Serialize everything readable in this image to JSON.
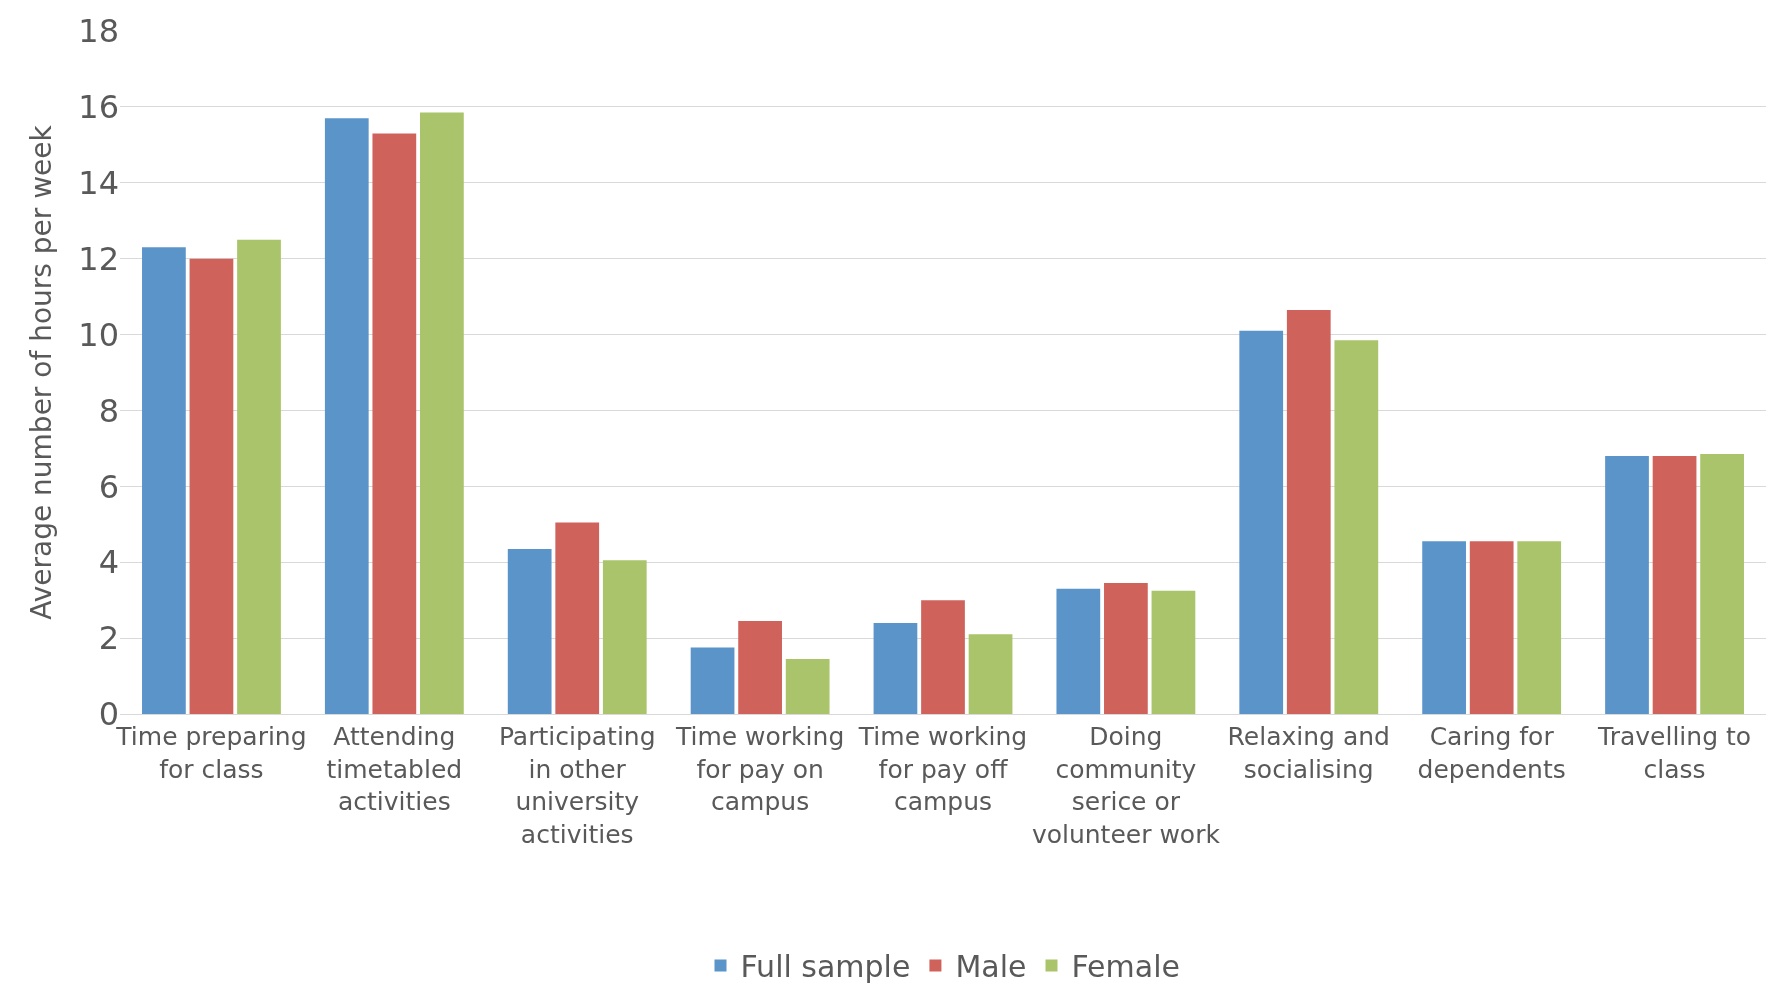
{
  "chart_data": {
    "type": "bar",
    "ylabel": "Average number of hours per week",
    "categories": [
      "Time preparing for class",
      "Attending timetabled activities",
      "Participating in other university activities",
      "Time working for pay on campus",
      "Time working for pay off campus",
      "Doing community serice or volunteer work",
      "Relaxing and socialising",
      "Caring for dependents",
      "Travelling to class"
    ],
    "series": [
      {
        "name": "Full sample",
        "color": "#5b94c9",
        "values": [
          12.3,
          15.7,
          4.35,
          1.75,
          2.4,
          3.3,
          10.1,
          4.55,
          6.8
        ]
      },
      {
        "name": "Male",
        "color": "#cf625b",
        "values": [
          12.0,
          15.3,
          5.05,
          2.45,
          3.0,
          3.45,
          10.65,
          4.55,
          6.8
        ]
      },
      {
        "name": "Female",
        "color": "#a9c46b",
        "values": [
          12.5,
          15.85,
          4.05,
          1.45,
          2.1,
          3.25,
          9.85,
          4.55,
          6.85
        ]
      }
    ],
    "ylim": [
      0,
      18
    ],
    "yticks": [
      0,
      2,
      4,
      6,
      8,
      10,
      12,
      14,
      16,
      18
    ],
    "grid": "y",
    "legend": "bottom"
  }
}
